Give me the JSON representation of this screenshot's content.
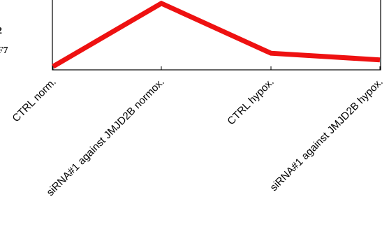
{
  "chart_data": {
    "type": "line",
    "categories": [
      "CTRL norm.",
      "siRNA#1 against JMJD2B normox.",
      "CTRL hypox.",
      "siRNA#1 against JMJD2B hypox."
    ],
    "series": [
      {
        "values": [
          0.05,
          1.0,
          0.25,
          0.15
        ],
        "color": "#ee1111"
      }
    ],
    "ylabel_fragments": [
      "2",
      "F7"
    ],
    "ylim": [
      0,
      1.05
    ],
    "grid": false,
    "legend": "none"
  }
}
